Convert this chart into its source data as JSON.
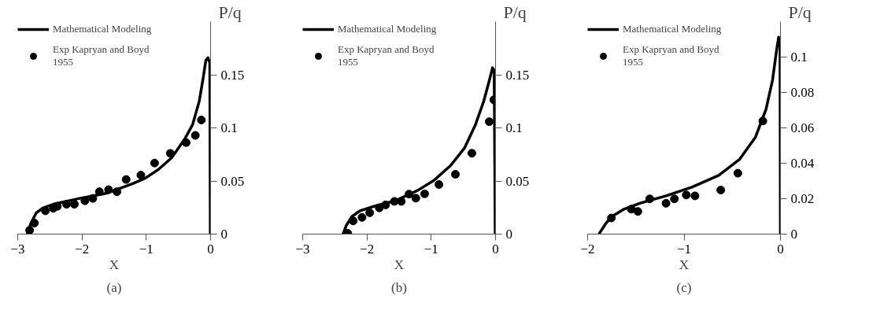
{
  "chart_data": [
    {
      "type": "line",
      "title": "(a)",
      "xlabel": "X",
      "ylabel": "P/q",
      "xlim": [
        -3,
        0
      ],
      "ylim": [
        0,
        0.2
      ],
      "xticks": [
        -3,
        -2,
        -1,
        0
      ],
      "yticks": [
        0,
        0.05,
        0.1,
        0.15
      ],
      "grid": false,
      "legend": "top left",
      "line_style": "solid",
      "series": [
        {
          "name": "Mathematical Modeling",
          "type": "line",
          "color": "#000000",
          "marker": "none",
          "x": [
            -2.855,
            -2.793,
            -2.712,
            -2.609,
            -2.446,
            -2.037,
            -1.628,
            -1.219,
            -1.014,
            -0.81,
            -0.605,
            -0.401,
            -0.278,
            -0.176,
            -0.115,
            -0.074,
            -0.041,
            -0.012,
            -0.004
          ],
          "values": [
            0,
            0.0104,
            0.02,
            0.0246,
            0.0281,
            0.0336,
            0.0383,
            0.0473,
            0.0527,
            0.0609,
            0.0719,
            0.0896,
            0.1033,
            0.1251,
            0.147,
            0.1634,
            0.1661,
            0.1612,
            0
          ]
        },
        {
          "name": "Exp Kapryan and Boyd\n1955",
          "type": "scatter",
          "color": "#000000",
          "marker": "circle",
          "x": [
            -2.814,
            -2.74,
            -2.569,
            -2.446,
            -2.384,
            -2.241,
            -2.119,
            -1.955,
            -1.832,
            -1.73,
            -1.587,
            -1.456,
            -1.313,
            -1.084,
            -0.871,
            -0.626,
            -0.38,
            -0.237,
            -0.143
          ],
          "values": [
            0.0036,
            0.0104,
            0.0219,
            0.0243,
            0.0262,
            0.0281,
            0.0281,
            0.0314,
            0.0336,
            0.0399,
            0.0418,
            0.0399,
            0.0514,
            0.0555,
            0.0669,
            0.076,
            0.0861,
            0.0929,
            0.1074
          ]
        }
      ]
    },
    {
      "type": "line",
      "title": "(b)",
      "xlabel": "X",
      "ylabel": "P/q",
      "xlim": [
        -3,
        0
      ],
      "ylim": [
        0,
        0.2
      ],
      "xticks": [
        -3,
        -2,
        -1,
        0
      ],
      "yticks": [
        0,
        0.05,
        0.1,
        0.15
      ],
      "grid": false,
      "legend": "top left",
      "line_style": "solid",
      "series": [
        {
          "name": "Mathematical Modeling",
          "type": "line",
          "color": "#000000",
          "marker": "none",
          "x": [
            -2.372,
            -2.321,
            -2.235,
            -2.107,
            -1.893,
            -1.551,
            -1.209,
            -0.953,
            -0.697,
            -0.483,
            -0.312,
            -0.184,
            -0.098,
            -0.047,
            -0.021,
            -0.005
          ],
          "values": [
            0,
            0.0082,
            0.0165,
            0.022,
            0.0261,
            0.0316,
            0.0412,
            0.0508,
            0.0646,
            0.081,
            0.103,
            0.125,
            0.1442,
            0.1566,
            0.1538,
            0
          ]
        },
        {
          "name": "Exp Kapryan and Boyd\n1955",
          "type": "scatter",
          "color": "#000000",
          "marker": "circle",
          "x": [
            -2.299,
            -2.214,
            -2.077,
            -1.957,
            -1.808,
            -1.709,
            -1.573,
            -1.466,
            -1.346,
            -1.239,
            -1.103,
            -0.88,
            -0.624,
            -0.368,
            -0.098,
            -0.026
          ],
          "values": [
            0.0008,
            0.0124,
            0.0157,
            0.0201,
            0.0247,
            0.0275,
            0.0308,
            0.0308,
            0.0376,
            0.0338,
            0.0379,
            0.0467,
            0.0563,
            0.0761,
            0.1058,
            0.1264
          ]
        }
      ]
    },
    {
      "type": "line",
      "title": "(c)",
      "xlabel": "X",
      "ylabel": "P/q",
      "xlim": [
        -2,
        0
      ],
      "ylim": [
        0,
        0.12
      ],
      "xticks": [
        -2,
        -1,
        0
      ],
      "yticks": [
        0,
        0.02,
        0.04,
        0.06,
        0.08,
        0.1
      ],
      "grid": false,
      "legend": "top left",
      "line_style": "solid",
      "series": [
        {
          "name": "Mathematical Modeling",
          "type": "line",
          "color": "#000000",
          "marker": "none",
          "x": [
            -1.883,
            -1.814,
            -1.746,
            -1.623,
            -1.46,
            -1.187,
            -0.914,
            -0.641,
            -0.423,
            -0.259,
            -0.15,
            -0.082,
            -0.041,
            -0.019,
            -0.005,
            -0.001
          ],
          "values": [
            0,
            0.0058,
            0.01,
            0.0141,
            0.0174,
            0.0216,
            0.0266,
            0.0332,
            0.0423,
            0.0548,
            0.0705,
            0.0871,
            0.1037,
            0.1112,
            0.1071,
            0
          ]
        },
        {
          "name": "Exp Kapryan and Boyd\n1955",
          "type": "scatter",
          "color": "#000000",
          "marker": "circle",
          "x": [
            -1.754,
            -1.547,
            -1.479,
            -1.356,
            -1.187,
            -1.1,
            -0.977,
            -0.887,
            -0.619,
            -0.442,
            -0.183
          ],
          "values": [
            0.0091,
            0.0141,
            0.0128,
            0.0199,
            0.0174,
            0.0199,
            0.0221,
            0.0216,
            0.0249,
            0.0344,
            0.0639
          ]
        }
      ]
    }
  ]
}
